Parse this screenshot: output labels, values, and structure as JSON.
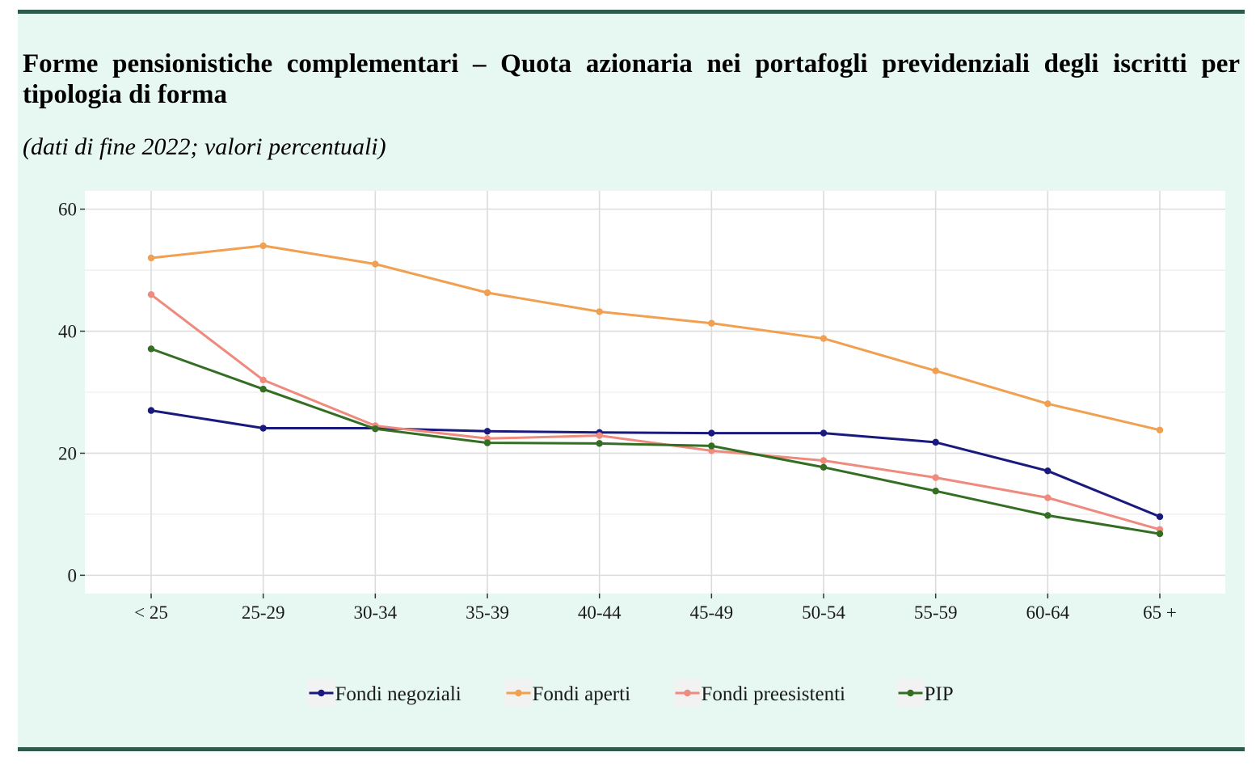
{
  "header": {
    "title": "Forme pensionistiche complementari – Quota azionaria nei portafogli previdenziali degli iscritti per tipologia di forma",
    "subtitle": "(dati di fine 2022; valori percentuali)"
  },
  "chart_data": {
    "type": "line",
    "title": "Forme pensionistiche complementari – Quota azionaria nei portafogli previdenziali degli iscritti per tipologia di forma",
    "subtitle": "(dati di fine 2022; valori percentuali)",
    "xlabel": "",
    "ylabel": "",
    "categories": [
      "< 25",
      "25-29",
      "30-34",
      "35-39",
      "40-44",
      "45-49",
      "50-54",
      "55-59",
      "60-64",
      "65 +"
    ],
    "ylim": [
      -3,
      63
    ],
    "yticks": [
      0,
      20,
      40,
      60
    ],
    "grid": true,
    "legend_position": "bottom",
    "series": [
      {
        "name": "Fondi negoziali",
        "color": "#1a1a7e",
        "values": [
          27,
          24.1,
          24.1,
          23.6,
          23.4,
          23.3,
          23.3,
          21.8,
          17.1,
          9.6
        ]
      },
      {
        "name": "Fondi aperti",
        "color": "#f0a050",
        "values": [
          52,
          54,
          51,
          46.3,
          43.2,
          41.3,
          38.8,
          33.5,
          28.1,
          23.8
        ]
      },
      {
        "name": "Fondi preesistenti",
        "color": "#ee8a7e",
        "values": [
          46,
          32,
          24.5,
          22.4,
          22.9,
          20.4,
          18.8,
          16,
          12.7,
          7.5
        ]
      },
      {
        "name": "PIP",
        "color": "#336e23",
        "values": [
          37.1,
          30.5,
          24,
          21.7,
          21.6,
          21.2,
          17.7,
          13.8,
          9.8,
          6.8
        ]
      }
    ]
  }
}
